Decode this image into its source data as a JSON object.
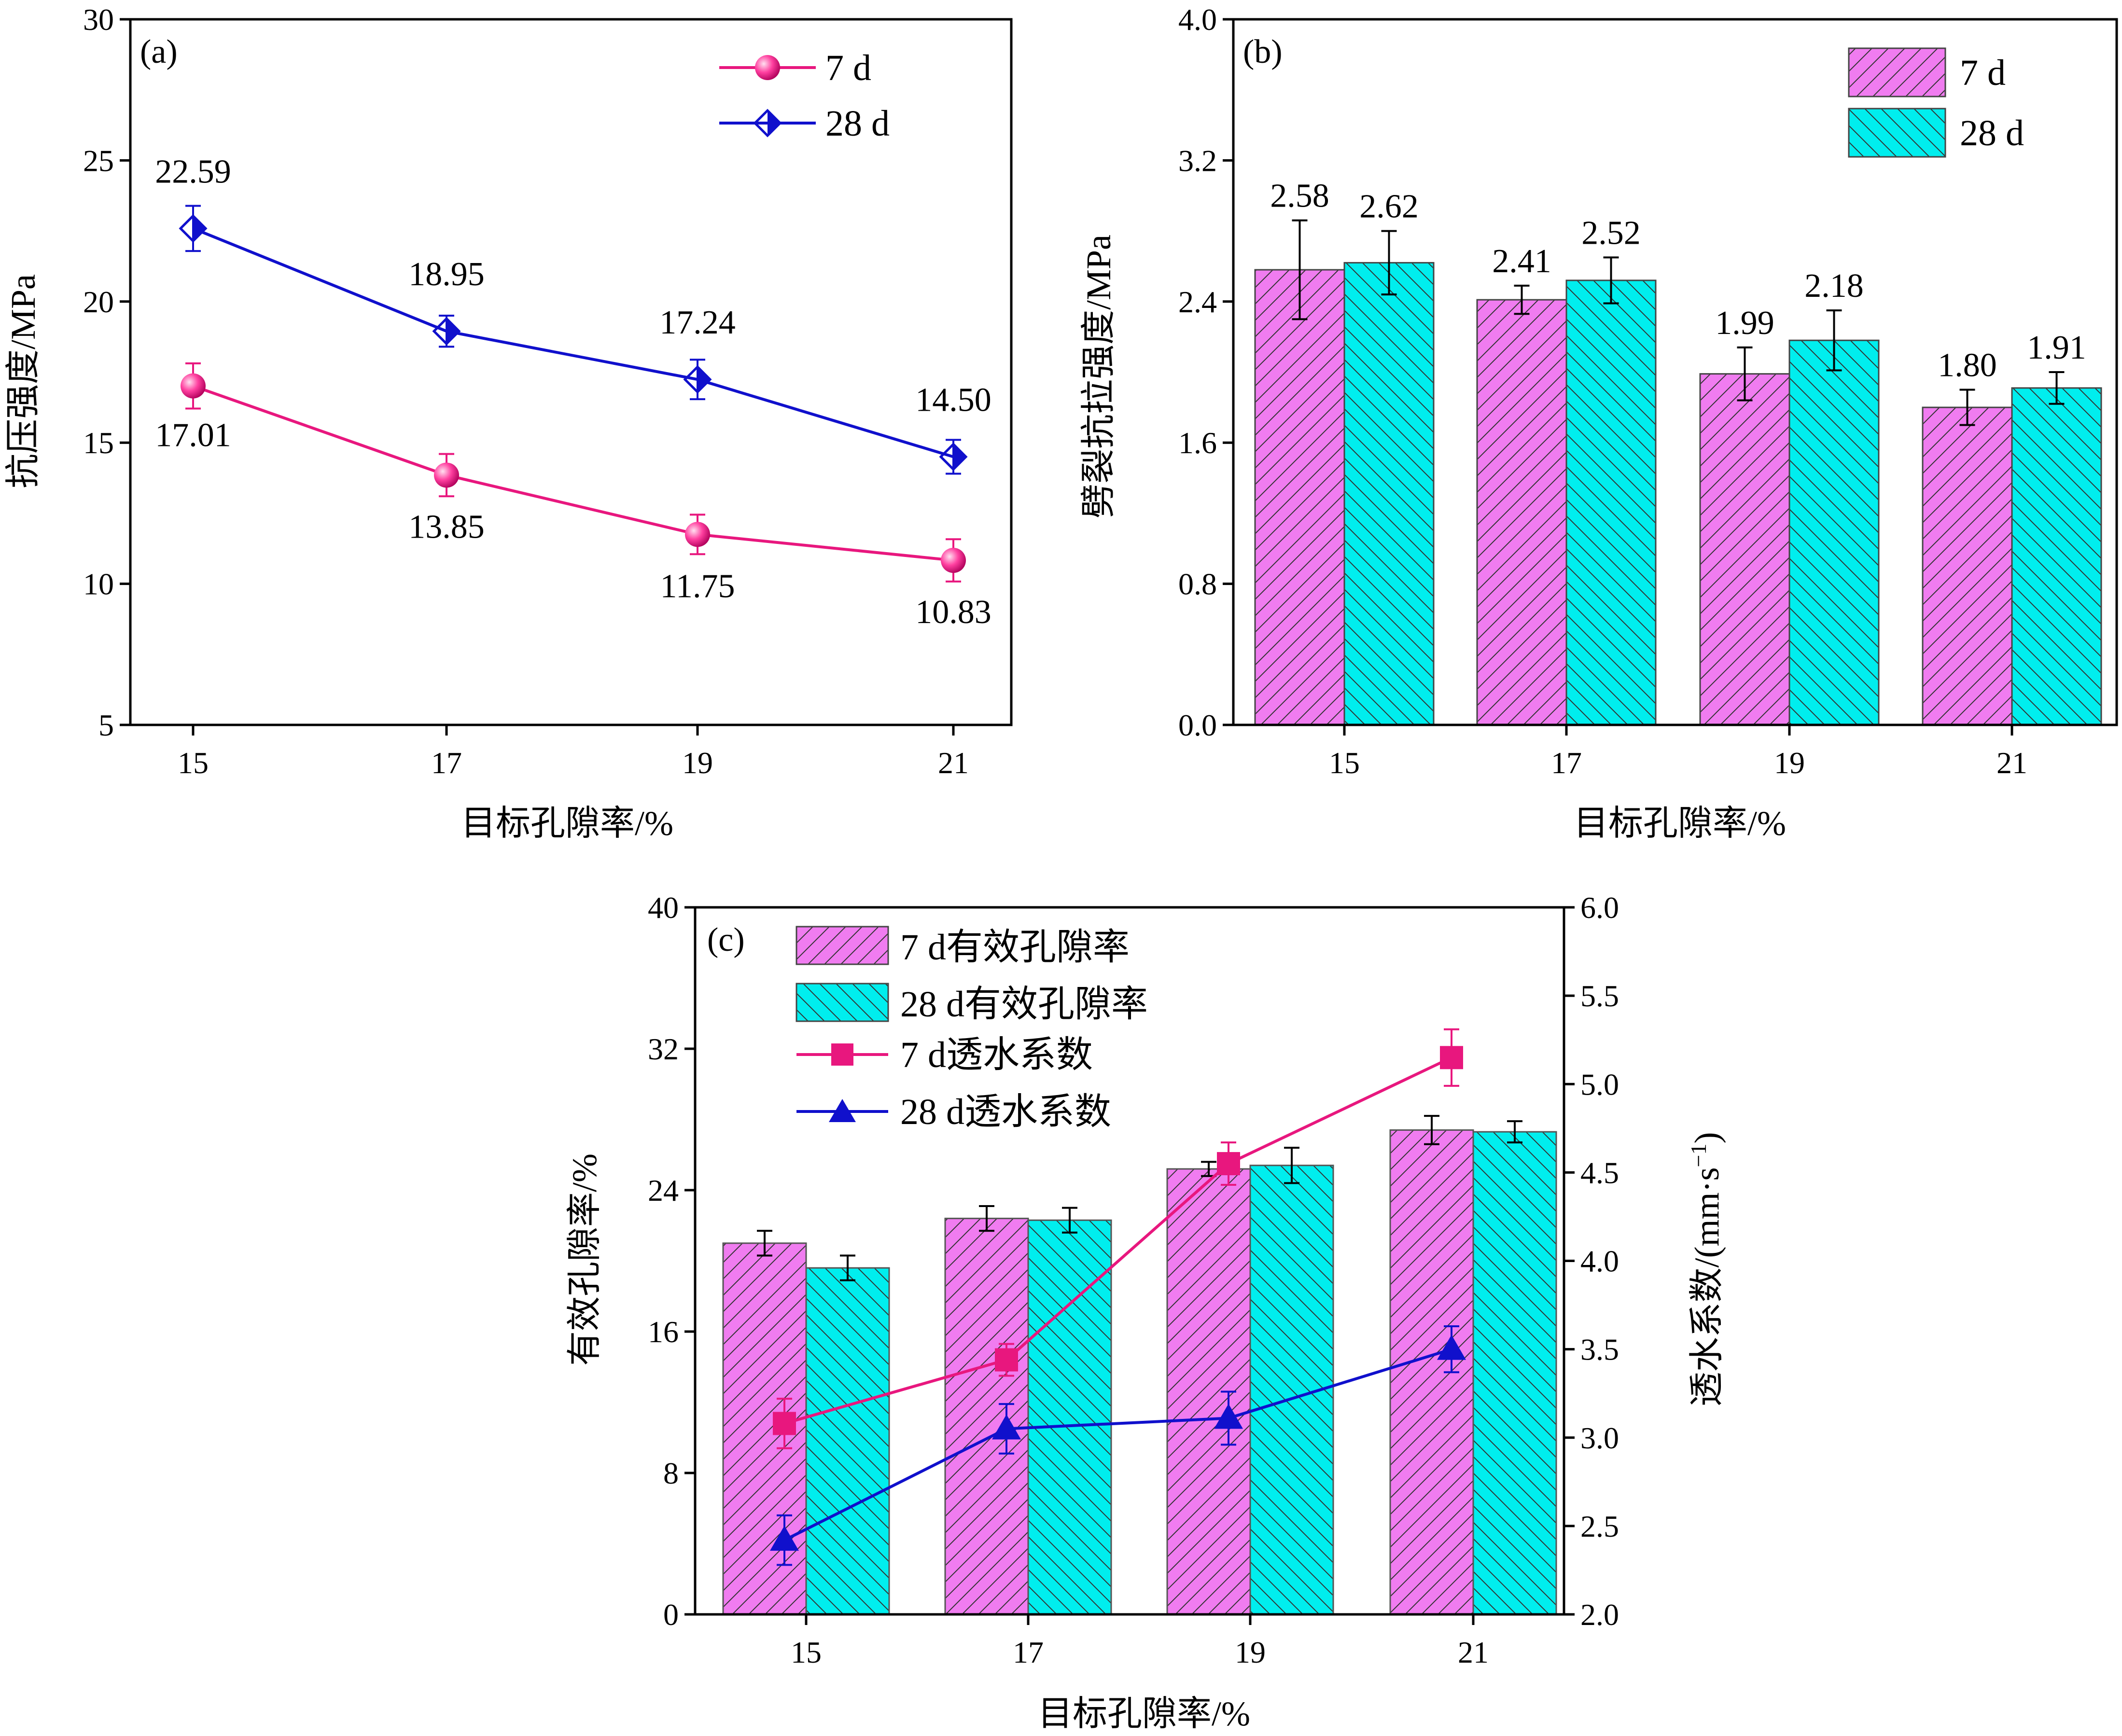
{
  "chart_data": [
    {
      "id": "a",
      "type": "line",
      "panel_label": "(a)",
      "xlabel": "目标孔隙率/%",
      "ylabel": "抗压强度/MPa",
      "categories": [
        "15",
        "17",
        "19",
        "21"
      ],
      "ylim": [
        5,
        30
      ],
      "yticks": [
        "5",
        "10",
        "15",
        "20",
        "25",
        "30"
      ],
      "series": [
        {
          "name": "7 d",
          "color": "#e8177e",
          "marker": "sphere",
          "values": [
            17.01,
            13.85,
            11.75,
            10.83
          ],
          "labels": [
            "17.01",
            "13.85",
            "11.75",
            "10.83"
          ],
          "errors": [
            0.8,
            0.75,
            0.7,
            0.75
          ]
        },
        {
          "name": "28 d",
          "color": "#1010cc",
          "marker": "half-diamond",
          "values": [
            22.59,
            18.95,
            17.24,
            14.5
          ],
          "labels": [
            "22.59",
            "18.95",
            "17.24",
            "14.50"
          ],
          "errors": [
            0.8,
            0.55,
            0.7,
            0.6
          ]
        }
      ]
    },
    {
      "id": "b",
      "type": "bar",
      "panel_label": "(b)",
      "xlabel": "目标孔隙率/%",
      "ylabel": "劈裂抗拉强度/MPa",
      "categories": [
        "15",
        "17",
        "19",
        "21"
      ],
      "ylim": [
        0.0,
        4.0
      ],
      "yticks": [
        "0.0",
        "0.8",
        "1.6",
        "2.4",
        "3.2",
        "4.0"
      ],
      "series": [
        {
          "name": "7 d",
          "color": "#f07cf0",
          "hatch": "up",
          "values": [
            2.58,
            2.41,
            1.99,
            1.8
          ],
          "labels": [
            "2.58",
            "2.41",
            "1.99",
            "1.80"
          ],
          "errors": [
            0.28,
            0.08,
            0.15,
            0.1
          ]
        },
        {
          "name": "28 d",
          "color": "#00eeee",
          "hatch": "down",
          "values": [
            2.62,
            2.52,
            2.18,
            1.91
          ],
          "labels": [
            "2.62",
            "2.52",
            "2.18",
            "1.91"
          ],
          "errors": [
            0.18,
            0.13,
            0.17,
            0.09
          ]
        }
      ]
    },
    {
      "id": "c",
      "type": "bar+line",
      "panel_label": "(c)",
      "xlabel": "目标孔隙率/%",
      "ylabel": "有效孔隙率/%",
      "y2label_main": "透水系数/(mm·s",
      "y2label_sup": "−1",
      "y2label_end": ")",
      "categories": [
        "15",
        "17",
        "19",
        "21"
      ],
      "ylim": [
        0,
        40
      ],
      "yticks": [
        "0",
        "8",
        "16",
        "24",
        "32",
        "40"
      ],
      "y2lim": [
        2.0,
        6.0
      ],
      "y2ticks": [
        "2.0",
        "2.5",
        "3.0",
        "3.5",
        "4.0",
        "4.5",
        "5.0",
        "5.5",
        "6.0"
      ],
      "bar_series": [
        {
          "name": "7 d有效孔隙率",
          "color": "#f07cf0",
          "hatch": "up",
          "values": [
            21.0,
            22.4,
            25.2,
            27.4
          ],
          "errors": [
            0.7,
            0.7,
            0.4,
            0.8
          ]
        },
        {
          "name": "28 d有效孔隙率",
          "color": "#00eeee",
          "hatch": "down",
          "values": [
            19.6,
            22.3,
            25.4,
            27.3
          ],
          "errors": [
            0.7,
            0.7,
            1.0,
            0.6
          ]
        }
      ],
      "line_series": [
        {
          "name": "7 d透水系数",
          "color": "#e8177e",
          "marker": "square",
          "values": [
            3.08,
            3.44,
            4.55,
            5.15
          ],
          "errors": [
            0.14,
            0.09,
            0.12,
            0.16
          ]
        },
        {
          "name": "28 d透水系数",
          "color": "#1010cc",
          "marker": "triangle",
          "values": [
            2.42,
            3.05,
            3.11,
            3.5
          ],
          "errors": [
            0.14,
            0.14,
            0.15,
            0.13
          ]
        }
      ]
    }
  ]
}
